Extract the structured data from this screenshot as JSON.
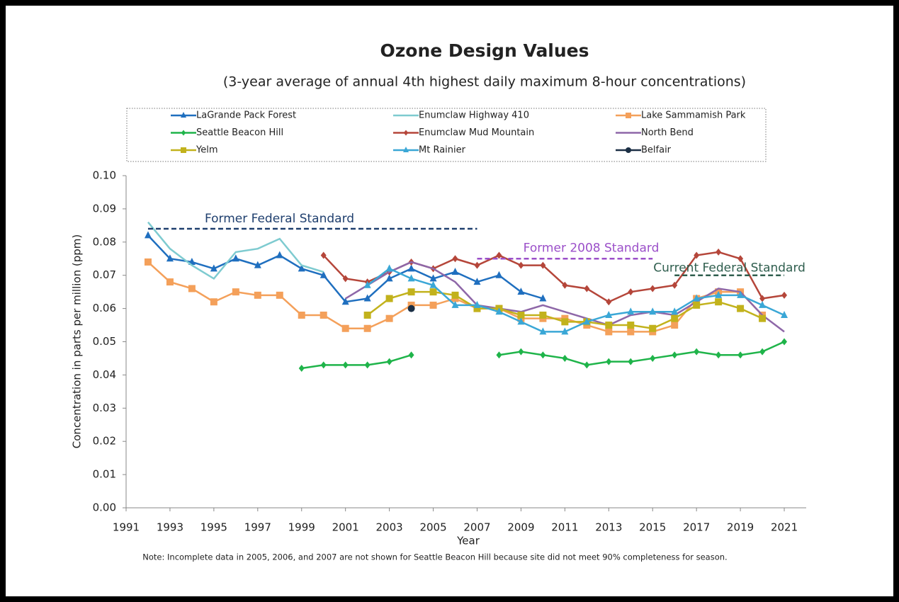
{
  "chart_data": {
    "type": "line",
    "title": "Ozone Design Values",
    "subtitle": "(3-year average of annual 4th highest daily maximum 8-hour concentrations)",
    "x_label": "Year",
    "y_label": "Concentration in parts per million (ppm)",
    "note": "Note: Incomplete data in 2005, 2006, and 2007 are not shown for Seattle Beacon Hill because site did not meet 90% completeness for season.",
    "x": [
      1992,
      1993,
      1994,
      1995,
      1996,
      1997,
      1998,
      1999,
      2000,
      2001,
      2002,
      2003,
      2004,
      2005,
      2006,
      2007,
      2008,
      2009,
      2010,
      2011,
      2012,
      2013,
      2014,
      2015,
      2016,
      2017,
      2018,
      2019,
      2020,
      2021
    ],
    "xlim": [
      1991,
      2022
    ],
    "xticks": [
      1991,
      1993,
      1995,
      1997,
      1999,
      2001,
      2003,
      2005,
      2007,
      2009,
      2011,
      2013,
      2015,
      2017,
      2019,
      2021
    ],
    "ylim": [
      0,
      0.1
    ],
    "yticks": [
      {
        "value": 0,
        "label": "0.00"
      },
      {
        "value": 0.01,
        "label": "0.01"
      },
      {
        "value": 0.02,
        "label": "0.02"
      },
      {
        "value": 0.03,
        "label": "0.03"
      },
      {
        "value": 0.04,
        "label": "0.04"
      },
      {
        "value": 0.05,
        "label": "0.05"
      },
      {
        "value": 0.06,
        "label": "0.06"
      },
      {
        "value": 0.07,
        "label": "0.07"
      },
      {
        "value": 0.08,
        "label": "0.08"
      },
      {
        "value": 0.09,
        "label": "0.09"
      },
      {
        "value": 0.1,
        "label": "0.10"
      }
    ],
    "series": [
      {
        "name": "LaGrande Pack Forest",
        "color": "#1f6fbf",
        "marker": "triangle",
        "values": [
          0.082,
          0.075,
          0.074,
          0.072,
          0.075,
          0.073,
          0.076,
          0.072,
          0.07,
          0.062,
          0.063,
          0.069,
          0.072,
          0.069,
          0.071,
          0.068,
          0.07,
          0.065,
          0.063,
          null,
          null,
          null,
          null,
          null,
          null,
          null,
          null,
          null,
          null,
          null
        ]
      },
      {
        "name": "Enumclaw Highway 410",
        "color": "#7ecbd0",
        "marker": "none",
        "values": [
          0.086,
          0.078,
          0.073,
          0.069,
          0.077,
          0.078,
          0.081,
          0.073,
          0.071,
          null,
          null,
          null,
          null,
          null,
          null,
          null,
          null,
          null,
          null,
          null,
          null,
          null,
          null,
          null,
          null,
          null,
          null,
          null,
          null,
          null
        ]
      },
      {
        "name": "Lake Sammamish Park",
        "color": "#f4a05a",
        "marker": "square",
        "values": [
          0.074,
          0.068,
          0.066,
          0.062,
          0.065,
          0.064,
          0.064,
          0.058,
          0.058,
          0.054,
          0.054,
          0.057,
          0.061,
          0.061,
          0.063,
          0.06,
          0.06,
          0.057,
          0.057,
          0.057,
          0.055,
          0.053,
          0.053,
          0.053,
          0.055,
          0.063,
          0.065,
          0.065,
          0.058,
          null
        ]
      },
      {
        "name": "Seattle Beacon Hill",
        "color": "#1fb44a",
        "marker": "diamond",
        "values": [
          null,
          null,
          null,
          null,
          null,
          null,
          null,
          0.042,
          0.043,
          0.043,
          0.043,
          0.044,
          0.046,
          null,
          null,
          null,
          0.046,
          0.047,
          0.046,
          0.045,
          0.043,
          0.044,
          0.044,
          0.045,
          0.046,
          0.047,
          0.046,
          0.046,
          0.047,
          0.05
        ]
      },
      {
        "name": "Enumclaw Mud Mountain",
        "color": "#b5463a",
        "marker": "diamond",
        "values": [
          null,
          null,
          null,
          null,
          null,
          null,
          null,
          null,
          0.076,
          0.069,
          0.068,
          0.071,
          0.074,
          0.072,
          0.075,
          0.073,
          0.076,
          0.073,
          0.073,
          0.067,
          0.066,
          0.062,
          0.065,
          0.066,
          0.067,
          0.076,
          0.077,
          0.075,
          0.063,
          0.064
        ]
      },
      {
        "name": "North Bend",
        "color": "#8e67a8",
        "marker": "none",
        "values": [
          null,
          null,
          null,
          null,
          null,
          null,
          null,
          null,
          null,
          0.063,
          0.067,
          0.071,
          0.074,
          0.072,
          0.068,
          0.061,
          0.06,
          0.059,
          0.061,
          0.059,
          0.057,
          0.055,
          0.058,
          0.059,
          0.058,
          0.062,
          0.066,
          0.065,
          0.058,
          0.053
        ]
      },
      {
        "name": "Yelm",
        "color": "#c2b21c",
        "marker": "square",
        "values": [
          null,
          null,
          null,
          null,
          null,
          null,
          null,
          null,
          null,
          null,
          0.058,
          0.063,
          0.065,
          0.065,
          0.064,
          0.06,
          0.06,
          0.058,
          0.058,
          0.056,
          0.056,
          0.055,
          0.055,
          0.054,
          0.057,
          0.061,
          0.062,
          0.06,
          0.057,
          null
        ]
      },
      {
        "name": "Mt Rainier",
        "color": "#3aa7d6",
        "marker": "triangle",
        "values": [
          null,
          null,
          null,
          null,
          null,
          null,
          null,
          null,
          null,
          null,
          0.067,
          0.072,
          0.069,
          0.067,
          0.061,
          0.061,
          0.059,
          0.056,
          0.053,
          0.053,
          0.056,
          0.058,
          0.059,
          0.059,
          0.059,
          0.063,
          0.064,
          0.064,
          0.061,
          0.058
        ]
      },
      {
        "name": "Belfair",
        "color": "#1b2f45",
        "marker": "circle",
        "values": [
          null,
          null,
          null,
          null,
          null,
          null,
          null,
          null,
          null,
          null,
          null,
          null,
          0.06,
          null,
          null,
          null,
          null,
          null,
          null,
          null,
          null,
          null,
          null,
          null,
          null,
          null,
          null,
          null,
          null,
          null
        ]
      }
    ],
    "reference_lines": [
      {
        "label": "Former Federal Standard",
        "value": 0.084,
        "x": [
          1992,
          2007
        ],
        "color": "#1f3f6e"
      },
      {
        "label": "Former 2008 Standard",
        "value": 0.075,
        "x": [
          2007,
          2015
        ],
        "color": "#9b4fc9"
      },
      {
        "label": "Current Federal Standard",
        "value": 0.07,
        "x": [
          2016,
          2021
        ],
        "color": "#2f5e4e"
      }
    ]
  }
}
